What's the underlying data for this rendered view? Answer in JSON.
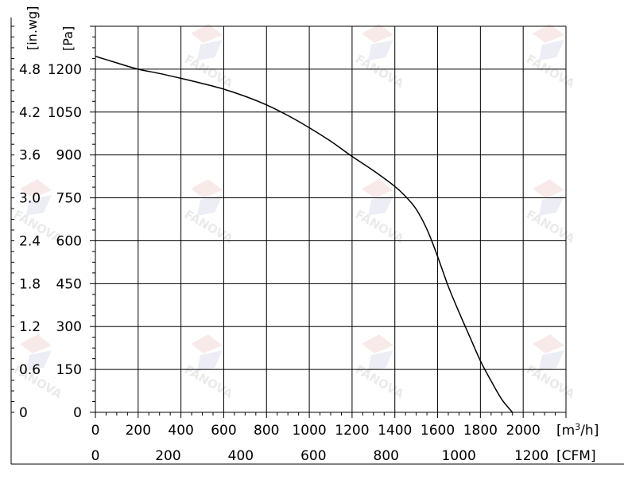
{
  "chart_data": {
    "type": "line",
    "title": "",
    "x_axis_primary": {
      "unit_label": "[m³/h]",
      "unit_base": "[m",
      "unit_sup": "3",
      "unit_tail": "/h]",
      "range": [
        0,
        2200
      ],
      "ticks": [
        0,
        200,
        400,
        600,
        800,
        1000,
        1200,
        1400,
        1600,
        1800,
        2000
      ]
    },
    "x_axis_secondary": {
      "unit_label": "[CFM]",
      "conversion_from_m3h": 0.5886,
      "ticks": [
        0,
        200,
        400,
        600,
        800,
        1000,
        1200
      ]
    },
    "y_axis_primary": {
      "unit_label": "[Pa]",
      "range": [
        0,
        1350
      ],
      "ticks": [
        0,
        150,
        300,
        450,
        600,
        750,
        900,
        1050,
        1200
      ]
    },
    "y_axis_secondary": {
      "unit_label": "[in.wg]",
      "conversion_from_pa": 0.004,
      "ticks": [
        "0",
        "0.6",
        "1.2",
        "1.8",
        "2.4",
        "3.0",
        "3.6",
        "4.2",
        "4.8"
      ]
    },
    "grid": true,
    "series": [
      {
        "x": [
          0,
          100,
          200,
          300,
          400,
          500,
          600,
          700,
          800,
          900,
          1000,
          1100,
          1200,
          1300,
          1400,
          1450,
          1500,
          1550,
          1600,
          1650,
          1700,
          1750,
          1800,
          1850,
          1900,
          1950
        ],
        "y": [
          1245,
          1222,
          1200,
          1185,
          1168,
          1150,
          1130,
          1105,
          1075,
          1038,
          995,
          948,
          895,
          845,
          790,
          755,
          710,
          640,
          545,
          440,
          350,
          265,
          180,
          110,
          45,
          0
        ]
      }
    ]
  },
  "watermark": {
    "text": "FANOVA"
  }
}
